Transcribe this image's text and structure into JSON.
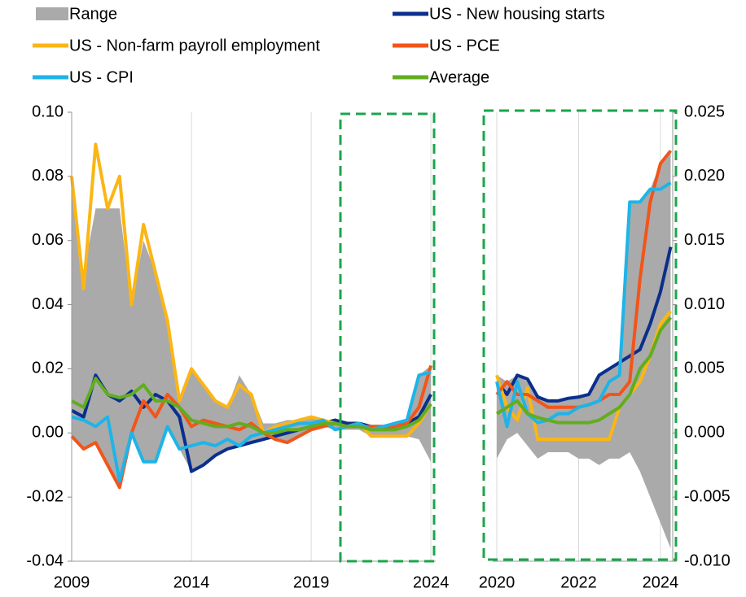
{
  "chart_data": [
    {
      "type": "line",
      "x": [
        2009,
        2009.5,
        2010,
        2010.5,
        2011,
        2011.5,
        2012,
        2012.5,
        2013,
        2013.5,
        2014,
        2014.5,
        2015,
        2015.5,
        2016,
        2016.5,
        2017,
        2017.5,
        2018,
        2018.5,
        2019,
        2019.5,
        2020,
        2020.5,
        2021,
        2021.5,
        2022,
        2022.5,
        2023,
        2023.5,
        2024
      ],
      "xlim": [
        2009,
        2024.2
      ],
      "xticks": [
        2009,
        2014,
        2019,
        2024
      ],
      "ylim": [
        -0.04,
        0.1
      ],
      "yticks": [
        {
          "value": -0.04,
          "label": "-0.04"
        },
        {
          "value": -0.02,
          "label": "-0.02"
        },
        {
          "value": 0,
          "label": "0.00"
        },
        {
          "value": 0.02,
          "label": "0.02"
        },
        {
          "value": 0.04,
          "label": "0.04"
        },
        {
          "value": 0.06,
          "label": "0.06"
        },
        {
          "value": 0.08,
          "label": "0.08"
        },
        {
          "value": 0.1,
          "label": "0.10"
        }
      ],
      "grid": true,
      "series": [
        {
          "name": "Range",
          "color": "#aaaaaa",
          "upper": [
            0.08,
            0.05,
            0.07,
            0.07,
            0.07,
            0.04,
            0.06,
            0.05,
            0.035,
            0.01,
            0.02,
            0.015,
            0.01,
            0.008,
            0.018,
            0.012,
            0.003,
            0.003,
            0.004,
            0.004,
            0.005,
            0.004,
            0.004,
            0.003,
            0.003,
            0.002,
            0.002,
            0.003,
            0.004,
            0.018,
            0.021
          ],
          "lower": [
            -0.001,
            -0.005,
            -0.003,
            -0.01,
            -0.017,
            -0.001,
            -0.009,
            -0.009,
            0.002,
            -0.005,
            -0.012,
            -0.01,
            -0.007,
            -0.005,
            -0.004,
            -0.003,
            -0.002,
            -0.002,
            -0.003,
            -0.001,
            0.001,
            0.002,
            0.001,
            0.001,
            0.001,
            -0.001,
            -0.001,
            -0.001,
            -0.001,
            -0.002,
            -0.009
          ]
        },
        {
          "name": "US - New housing starts",
          "color": "#0a2f8c",
          "values": [
            0.007,
            0.005,
            0.018,
            0.012,
            0.01,
            0.013,
            0.008,
            0.012,
            0.01,
            0.005,
            -0.012,
            -0.01,
            -0.007,
            -0.005,
            -0.004,
            -0.003,
            -0.002,
            -0.001,
            0,
            0.001,
            0.002,
            0.003,
            0.004,
            0.003,
            0.003,
            0.002,
            0.002,
            0.002,
            0.003,
            0.005,
            0.012
          ]
        },
        {
          "name": "US - Non-farm payroll employment",
          "color": "#fbb615",
          "values": [
            0.08,
            0.045,
            0.09,
            0.07,
            0.08,
            0.04,
            0.065,
            0.05,
            0.035,
            0.01,
            0.02,
            0.015,
            0.01,
            0.008,
            0.015,
            0.012,
            0,
            0.002,
            0.003,
            0.004,
            0.005,
            0.004,
            0.003,
            0.002,
            0.003,
            -0.001,
            -0.001,
            -0.001,
            -0.001,
            0.003,
            0.009
          ]
        },
        {
          "name": "US - PCE",
          "color": "#f2551a",
          "values": [
            -0.001,
            -0.005,
            -0.003,
            -0.01,
            -0.017,
            0,
            0.01,
            0.005,
            0.012,
            0.008,
            0.002,
            0.004,
            0.003,
            0.002,
            0.001,
            0.003,
            0,
            -0.002,
            -0.003,
            -0.001,
            0.001,
            0.002,
            0.003,
            0.002,
            0.002,
            0.002,
            0.002,
            0.002,
            0.003,
            0.008,
            0.021
          ]
        },
        {
          "name": "US - CPI",
          "color": "#1eb4e8",
          "values": [
            0.005,
            0.004,
            0.002,
            0.005,
            -0.015,
            0,
            -0.009,
            -0.009,
            0.002,
            -0.005,
            -0.004,
            -0.003,
            -0.004,
            -0.002,
            -0.004,
            -0.001,
            0,
            0.001,
            0.002,
            0.003,
            0.003,
            0.004,
            0.001,
            0.002,
            0.003,
            0.001,
            0.002,
            0.003,
            0.004,
            0.018,
            0.019
          ]
        },
        {
          "name": "Average",
          "color": "#62ad1f",
          "values": [
            0.01,
            0.008,
            0.017,
            0.012,
            0.011,
            0.012,
            0.015,
            0.01,
            0.01,
            0.008,
            0.004,
            0.003,
            0.002,
            0.002,
            0.003,
            0.002,
            0,
            0,
            0.001,
            0.001,
            0.002,
            0.003,
            0.003,
            0.002,
            0.002,
            0.001,
            0.001,
            0.001,
            0.002,
            0.004,
            0.009
          ]
        }
      ]
    },
    {
      "type": "line",
      "x": [
        2020,
        2020.25,
        2020.5,
        2020.75,
        2021,
        2021.25,
        2021.5,
        2021.75,
        2022,
        2022.25,
        2022.5,
        2022.75,
        2023,
        2023.25,
        2023.5,
        2023.75,
        2024,
        2024.25
      ],
      "xlim": [
        2019.9,
        2024.3
      ],
      "xticks": [
        2020,
        2022,
        2024
      ],
      "y2lim": [
        -0.01,
        0.025
      ],
      "y2ticks": [
        {
          "value": -0.01,
          "label": "-0.010"
        },
        {
          "value": -0.005,
          "label": "-0.005"
        },
        {
          "value": 0,
          "label": "0.000"
        },
        {
          "value": 0.005,
          "label": "0.005"
        },
        {
          "value": 0.01,
          "label": "0.010"
        },
        {
          "value": 0.015,
          "label": "0.015"
        },
        {
          "value": 0.02,
          "label": "0.020"
        },
        {
          "value": 0.025,
          "label": "0.025"
        }
      ],
      "grid": true,
      "series": [
        {
          "color": "#aaaaaa",
          "axis": "y2",
          "upper": [
            0.0045,
            0.004,
            0.0045,
            0.004,
            0.003,
            0.0025,
            0.0025,
            0.0027,
            0.0028,
            0.003,
            0.0045,
            0.005,
            0.0055,
            0.018,
            0.018,
            0.019,
            0.021,
            0.022
          ],
          "lower": [
            -0.002,
            -0.0005,
            0,
            -0.001,
            -0.002,
            -0.0015,
            -0.0015,
            -0.0015,
            -0.002,
            -0.002,
            -0.0025,
            -0.002,
            -0.002,
            -0.0015,
            -0.003,
            -0.005,
            -0.007,
            -0.009
          ]
        },
        {
          "color": "#0a2f8c",
          "axis": "y2",
          "values": [
            0.004,
            0.003,
            0.0045,
            0.0042,
            0.0028,
            0.0025,
            0.0025,
            0.0027,
            0.0028,
            0.003,
            0.0045,
            0.005,
            0.0055,
            0.006,
            0.0065,
            0.0085,
            0.011,
            0.0145
          ]
        },
        {
          "color": "#fbb615",
          "axis": "y2",
          "values": [
            0.0045,
            0.002,
            0.001,
            0.0035,
            -0.0005,
            -0.0005,
            -0.0005,
            -0.0005,
            -0.0005,
            -0.0005,
            -0.0005,
            -0.0005,
            0.002,
            0.003,
            0.004,
            0.006,
            0.0085,
            0.0095
          ]
        },
        {
          "color": "#f2551a",
          "axis": "y2",
          "values": [
            0.003,
            0.004,
            0.003,
            0.003,
            0.0025,
            0.002,
            0.002,
            0.002,
            0.002,
            0.0022,
            0.0025,
            0.003,
            0.003,
            0.004,
            0.012,
            0.018,
            0.021,
            0.022
          ]
        },
        {
          "color": "#1eb4e8",
          "axis": "y2",
          "values": [
            0.004,
            0.0005,
            0.004,
            0.0015,
            0.0008,
            0.001,
            0.0015,
            0.0015,
            0.002,
            0.0022,
            0.0025,
            0.004,
            0.0045,
            0.018,
            0.018,
            0.019,
            0.019,
            0.0195
          ]
        },
        {
          "color": "#62ad1f",
          "axis": "y2",
          "values": [
            0.0015,
            0.002,
            0.0025,
            0.0015,
            0.0012,
            0.001,
            0.0008,
            0.0008,
            0.0008,
            0.0008,
            0.001,
            0.0015,
            0.002,
            0.003,
            0.005,
            0.006,
            0.008,
            0.009
          ]
        }
      ]
    }
  ]
}
